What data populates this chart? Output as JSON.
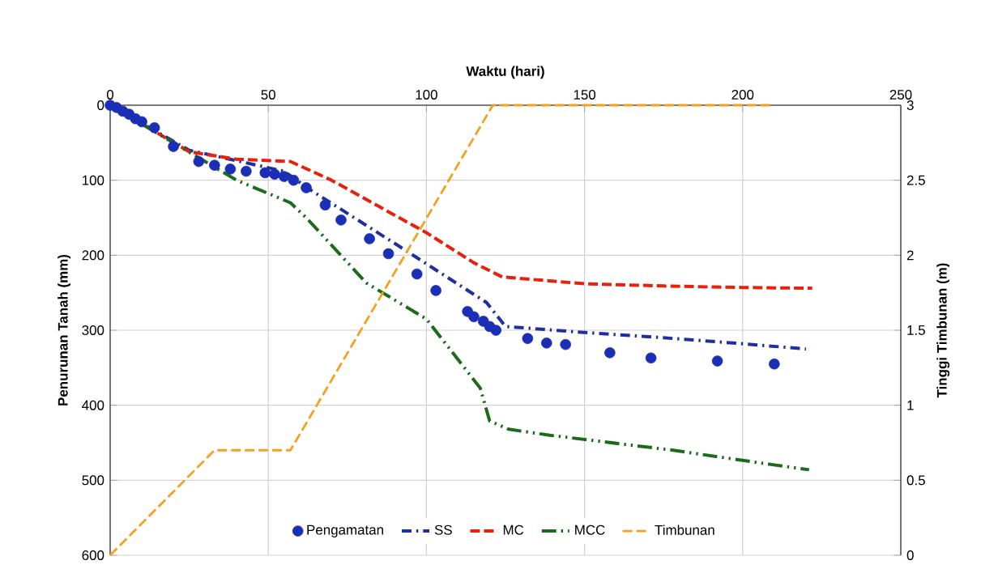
{
  "chart_data": {
    "type": "line",
    "xlabel": "Waktu (hari)",
    "ylabel": "Penurunan Tanah (mm)",
    "y2label": "Tinggi Timbunan (m)",
    "xlim": [
      0,
      250
    ],
    "xticks": [
      0,
      50,
      100,
      150,
      200,
      250
    ],
    "ylim": [
      600,
      0
    ],
    "yticks": [
      0,
      100,
      200,
      300,
      400,
      500,
      600
    ],
    "y2lim": [
      0,
      3
    ],
    "y2ticks": [
      0,
      0.5,
      1,
      1.5,
      2,
      2.5,
      3
    ],
    "grid": true,
    "legend": "bottom",
    "series": [
      {
        "name": "Pengamatan",
        "type": "scatter",
        "marker": "circle",
        "color": "#1a2fb5",
        "x": [
          0,
          2,
          4,
          6,
          8,
          10,
          14,
          20,
          28,
          33,
          38,
          43,
          49,
          52,
          55,
          58,
          62,
          68,
          73,
          82,
          88,
          97,
          103,
          113,
          115,
          118,
          120,
          122,
          132,
          138,
          144,
          158,
          171,
          192,
          210
        ],
        "values": [
          0,
          3,
          8,
          12,
          18,
          22,
          30,
          55,
          75,
          80,
          85,
          88,
          90,
          92,
          95,
          100,
          110,
          133,
          153,
          178,
          198,
          225,
          247,
          275,
          282,
          288,
          295,
          300,
          311,
          317,
          319,
          330,
          337,
          341,
          345
        ]
      },
      {
        "name": "SS",
        "line_style": "dashdot",
        "color": "#1f2f9f",
        "x": [
          0,
          25,
          55,
          63,
          91,
          119,
          125,
          150,
          175,
          200,
          220
        ],
        "values": [
          0,
          60,
          88,
          112,
          187,
          263,
          295,
          303,
          310,
          318,
          325
        ]
      },
      {
        "name": "MC",
        "line_style": "dashed",
        "color": "#e8200c",
        "x": [
          0,
          25,
          40,
          57,
          70,
          85,
          100,
          115,
          124,
          150,
          175,
          200,
          222
        ],
        "values": [
          0,
          62,
          72,
          75,
          100,
          135,
          170,
          210,
          229,
          238,
          241,
          243,
          244
        ]
      },
      {
        "name": "MCC",
        "line_style": "dashdotdot",
        "color": "#1a6b1a",
        "x": [
          0,
          20,
          30,
          40,
          57,
          62,
          81,
          100,
          117,
          120,
          126,
          139,
          178,
          209,
          221
        ],
        "values": [
          0,
          50,
          75,
          100,
          130,
          150,
          237,
          285,
          377,
          421,
          432,
          440,
          460,
          479,
          486
        ]
      },
      {
        "name": "Timbunan",
        "line_style": "dashed",
        "axis": "y2",
        "color": "#f5a020",
        "x": [
          0,
          33,
          57,
          121,
          210
        ],
        "values": [
          0,
          0.7,
          0.7,
          3,
          3
        ]
      }
    ]
  }
}
